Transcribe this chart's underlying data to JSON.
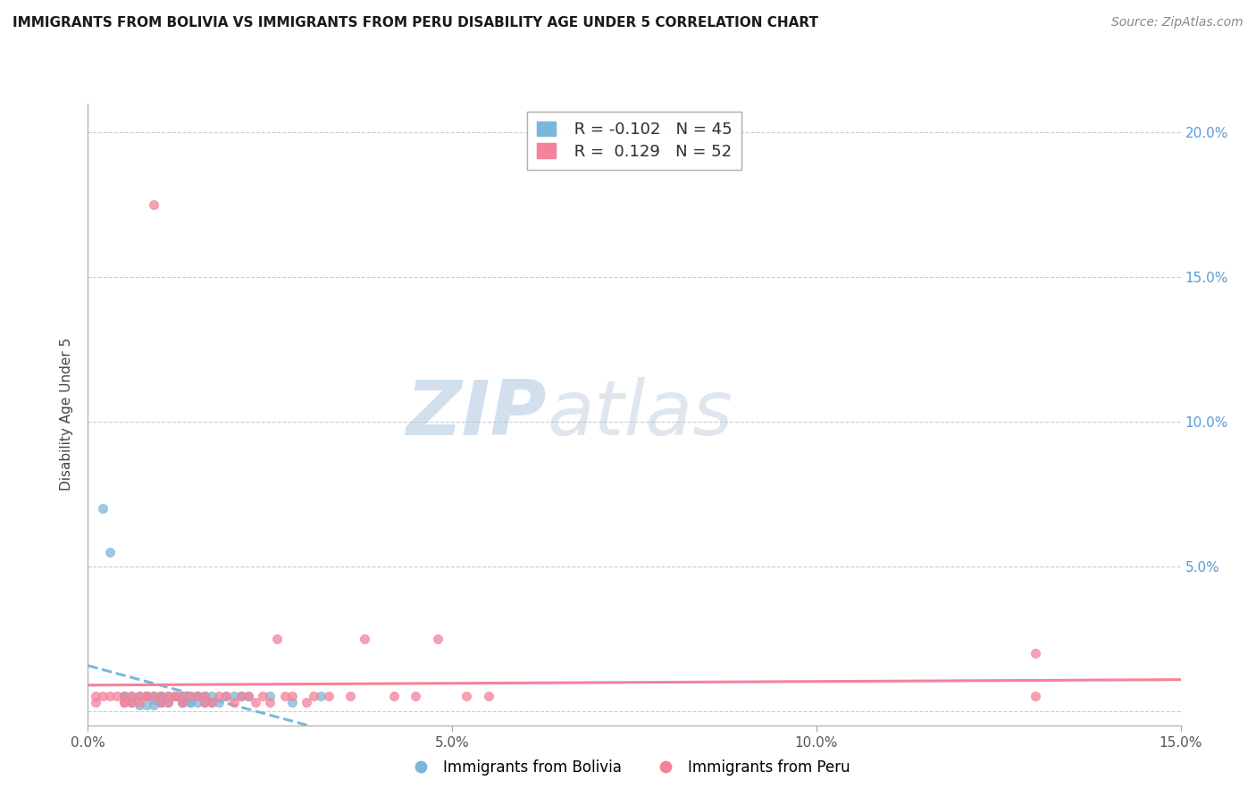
{
  "title": "IMMIGRANTS FROM BOLIVIA VS IMMIGRANTS FROM PERU DISABILITY AGE UNDER 5 CORRELATION CHART",
  "source": "Source: ZipAtlas.com",
  "ylabel": "Disability Age Under 5",
  "xmin": 0.0,
  "xmax": 0.15,
  "ymin": -0.005,
  "ymax": 0.21,
  "r_bolivia": -0.102,
  "n_bolivia": 45,
  "r_peru": 0.129,
  "n_peru": 52,
  "color_bolivia": "#7ab8d9",
  "color_peru": "#f4829a",
  "legend_label_bolivia": "Immigrants from Bolivia",
  "legend_label_peru": "Immigrants from Peru",
  "watermark_zip": "ZIP",
  "watermark_atlas": "atlas",
  "bolivia_x": [
    0.002,
    0.003,
    0.005,
    0.005,
    0.006,
    0.006,
    0.007,
    0.007,
    0.008,
    0.008,
    0.008,
    0.009,
    0.009,
    0.009,
    0.01,
    0.01,
    0.01,
    0.01,
    0.011,
    0.011,
    0.012,
    0.012,
    0.013,
    0.013,
    0.013,
    0.013,
    0.014,
    0.014,
    0.014,
    0.015,
    0.015,
    0.015,
    0.016,
    0.016,
    0.016,
    0.017,
    0.017,
    0.018,
    0.019,
    0.02,
    0.021,
    0.022,
    0.025,
    0.028,
    0.032
  ],
  "bolivia_y": [
    0.07,
    0.055,
    0.005,
    0.005,
    0.005,
    0.003,
    0.005,
    0.002,
    0.005,
    0.005,
    0.002,
    0.005,
    0.004,
    0.002,
    0.005,
    0.005,
    0.003,
    0.003,
    0.005,
    0.003,
    0.005,
    0.005,
    0.005,
    0.005,
    0.003,
    0.003,
    0.005,
    0.003,
    0.003,
    0.005,
    0.005,
    0.003,
    0.005,
    0.005,
    0.003,
    0.005,
    0.003,
    0.003,
    0.005,
    0.005,
    0.005,
    0.005,
    0.005,
    0.003,
    0.005
  ],
  "peru_x": [
    0.001,
    0.001,
    0.002,
    0.003,
    0.004,
    0.005,
    0.005,
    0.005,
    0.006,
    0.006,
    0.007,
    0.007,
    0.008,
    0.008,
    0.009,
    0.009,
    0.01,
    0.01,
    0.011,
    0.011,
    0.012,
    0.012,
    0.013,
    0.013,
    0.014,
    0.015,
    0.016,
    0.016,
    0.017,
    0.018,
    0.019,
    0.02,
    0.021,
    0.022,
    0.023,
    0.024,
    0.025,
    0.026,
    0.027,
    0.028,
    0.03,
    0.031,
    0.033,
    0.036,
    0.038,
    0.042,
    0.045,
    0.048,
    0.052,
    0.055,
    0.13,
    0.13
  ],
  "peru_y": [
    0.005,
    0.003,
    0.005,
    0.005,
    0.005,
    0.005,
    0.003,
    0.003,
    0.005,
    0.003,
    0.005,
    0.003,
    0.005,
    0.005,
    0.175,
    0.005,
    0.005,
    0.003,
    0.005,
    0.003,
    0.005,
    0.005,
    0.005,
    0.003,
    0.005,
    0.005,
    0.005,
    0.003,
    0.003,
    0.005,
    0.005,
    0.003,
    0.005,
    0.005,
    0.003,
    0.005,
    0.003,
    0.025,
    0.005,
    0.005,
    0.003,
    0.005,
    0.005,
    0.005,
    0.025,
    0.005,
    0.005,
    0.025,
    0.005,
    0.005,
    0.02,
    0.005
  ]
}
